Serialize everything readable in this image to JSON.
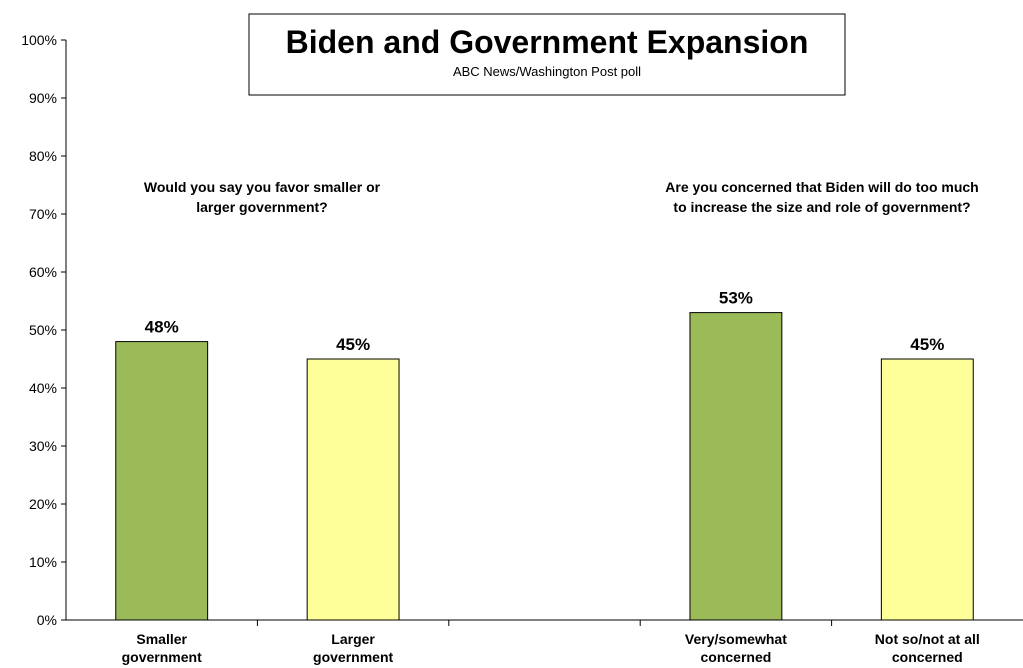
{
  "title": "Biden and Government Expansion",
  "subtitle": "ABC News/Washington Post poll",
  "questions": [
    {
      "line1": "Would you say you favor smaller or",
      "line2": "larger government?"
    },
    {
      "line1": "Are you concerned that Biden will do too much",
      "line2": "to increase the size and role of government?"
    }
  ],
  "chart_data": {
    "type": "bar",
    "title": "Biden and Government Expansion",
    "subtitle": "ABC News/Washington Post poll",
    "ylim": [
      0,
      100
    ],
    "y_ticks": [
      "0%",
      "10%",
      "20%",
      "30%",
      "40%",
      "50%",
      "60%",
      "70%",
      "80%",
      "90%",
      "100%"
    ],
    "grid": false,
    "categories": [
      [
        "Smaller",
        "government"
      ],
      [
        "Larger",
        "government"
      ],
      [
        "",
        ""
      ],
      [
        "Very/somewhat",
        "concerned"
      ],
      [
        "Not so/not at all",
        "concerned"
      ]
    ],
    "values": [
      48,
      45,
      null,
      53,
      45
    ],
    "value_labels": [
      "48%",
      "45%",
      "",
      "53%",
      "45%"
    ],
    "bar_colors": [
      "#9BBB59",
      "#FFFF99",
      "",
      "#9BBB59",
      "#FFFF99"
    ]
  },
  "colors": {
    "green": "#9BBB59",
    "yellow": "#FFFF99",
    "axis": "#000000"
  }
}
